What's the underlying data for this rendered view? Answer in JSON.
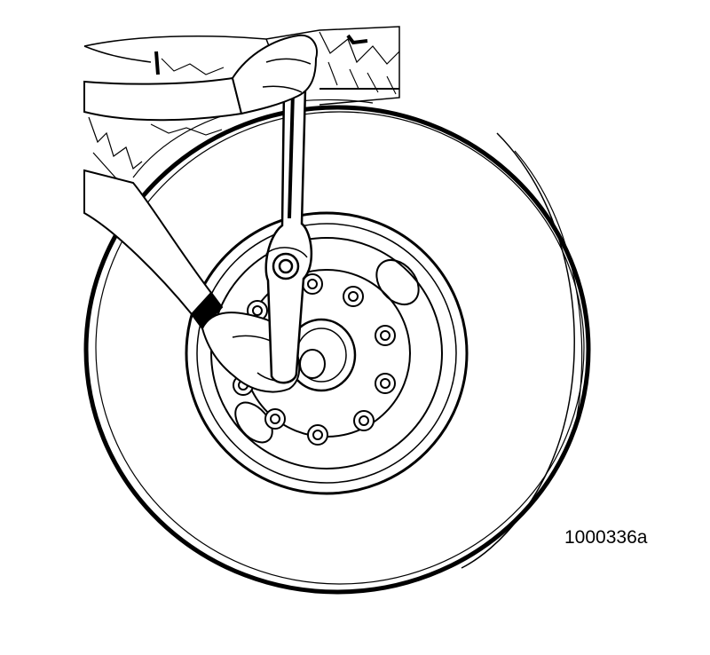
{
  "figure": {
    "id_label": "1000336a"
  },
  "colors": {
    "ink": "#000000",
    "paper": "#ffffff"
  }
}
